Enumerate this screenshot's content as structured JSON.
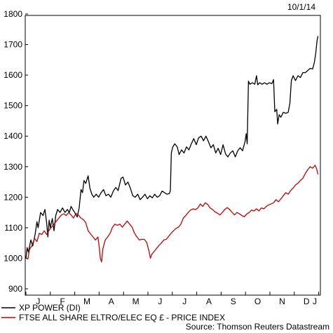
{
  "chart_data": {
    "type": "line",
    "date_label": "10/1/14",
    "source": "Source: Thomson Reuters Datastream",
    "ylim": [
      900,
      1800
    ],
    "yticks": [
      900,
      1000,
      1100,
      1200,
      1300,
      1400,
      1500,
      1600,
      1700,
      1800
    ],
    "month_labels": [
      "J",
      "F",
      "M",
      "A",
      "M",
      "J",
      "J",
      "A",
      "S",
      "O",
      "N",
      "D",
      "J"
    ],
    "x_range": [
      0,
      12.35
    ],
    "grid": false,
    "legend_position": "bottom-left",
    "series": [
      {
        "name": "XP POWER (DI)",
        "color": "#000000",
        "points": [
          [
            0,
            1000
          ],
          [
            0.05,
            1035
          ],
          [
            0.1,
            1020
          ],
          [
            0.2,
            1060
          ],
          [
            0.28,
            1040
          ],
          [
            0.38,
            1080
          ],
          [
            0.45,
            1120
          ],
          [
            0.5,
            1100
          ],
          [
            0.6,
            1150
          ],
          [
            0.7,
            1140
          ],
          [
            0.78,
            1160
          ],
          [
            0.85,
            1115
          ],
          [
            0.9,
            1070
          ],
          [
            0.95,
            1125
          ],
          [
            1.0,
            1100
          ],
          [
            1.08,
            1130
          ],
          [
            1.15,
            1090
          ],
          [
            1.22,
            1140
          ],
          [
            1.3,
            1160
          ],
          [
            1.4,
            1150
          ],
          [
            1.5,
            1165
          ],
          [
            1.6,
            1150
          ],
          [
            1.7,
            1160
          ],
          [
            1.78,
            1150
          ],
          [
            1.85,
            1170
          ],
          [
            1.92,
            1160
          ],
          [
            2.0,
            1150
          ],
          [
            2.1,
            1135
          ],
          [
            2.18,
            1165
          ],
          [
            2.26,
            1225
          ],
          [
            2.32,
            1215
          ],
          [
            2.38,
            1255
          ],
          [
            2.45,
            1245
          ],
          [
            2.55,
            1270
          ],
          [
            2.62,
            1230
          ],
          [
            2.7,
            1210
          ],
          [
            2.78,
            1200
          ],
          [
            2.88,
            1210
          ],
          [
            2.98,
            1200
          ],
          [
            3.08,
            1215
          ],
          [
            3.18,
            1225
          ],
          [
            3.28,
            1205
          ],
          [
            3.38,
            1210
          ],
          [
            3.48,
            1200
          ],
          [
            3.58,
            1220
          ],
          [
            3.68,
            1232
          ],
          [
            3.78,
            1222
          ],
          [
            3.9,
            1262
          ],
          [
            3.98,
            1266
          ],
          [
            4.08,
            1240
          ],
          [
            4.18,
            1250
          ],
          [
            4.28,
            1230
          ],
          [
            4.38,
            1205
          ],
          [
            4.48,
            1200
          ],
          [
            4.58,
            1210
          ],
          [
            4.68,
            1192
          ],
          [
            4.78,
            1200
          ],
          [
            4.88,
            1210
          ],
          [
            4.98,
            1195
          ],
          [
            5.08,
            1205
          ],
          [
            5.18,
            1198
          ],
          [
            5.28,
            1210
          ],
          [
            5.38,
            1200
          ],
          [
            5.48,
            1205
          ],
          [
            5.58,
            1220
          ],
          [
            5.68,
            1215
          ],
          [
            5.78,
            1210
          ],
          [
            5.88,
            1212
          ],
          [
            5.92,
            1222
          ],
          [
            5.96,
            1345
          ],
          [
            6.02,
            1365
          ],
          [
            6.1,
            1375
          ],
          [
            6.2,
            1365
          ],
          [
            6.28,
            1340
          ],
          [
            6.38,
            1355
          ],
          [
            6.48,
            1345
          ],
          [
            6.58,
            1365
          ],
          [
            6.68,
            1355
          ],
          [
            6.78,
            1375
          ],
          [
            6.88,
            1392
          ],
          [
            6.98,
            1372
          ],
          [
            7.08,
            1395
          ],
          [
            7.18,
            1400
          ],
          [
            7.28,
            1385
          ],
          [
            7.38,
            1400
          ],
          [
            7.48,
            1382
          ],
          [
            7.58,
            1362
          ],
          [
            7.68,
            1372
          ],
          [
            7.78,
            1345
          ],
          [
            7.88,
            1360
          ],
          [
            7.98,
            1340
          ],
          [
            8.08,
            1372
          ],
          [
            8.18,
            1342
          ],
          [
            8.28,
            1332
          ],
          [
            8.38,
            1345
          ],
          [
            8.48,
            1352
          ],
          [
            8.58,
            1332
          ],
          [
            8.68,
            1352
          ],
          [
            8.78,
            1362
          ],
          [
            8.88,
            1352
          ],
          [
            8.98,
            1382
          ],
          [
            9.03,
            1408
          ],
          [
            9.07,
            1375
          ],
          [
            9.12,
            1580
          ],
          [
            9.18,
            1570
          ],
          [
            9.28,
            1575
          ],
          [
            9.38,
            1570
          ],
          [
            9.45,
            1598
          ],
          [
            9.5,
            1568
          ],
          [
            9.58,
            1575
          ],
          [
            9.68,
            1570
          ],
          [
            9.78,
            1575
          ],
          [
            9.88,
            1570
          ],
          [
            9.98,
            1575
          ],
          [
            10.08,
            1572
          ],
          [
            10.15,
            1585
          ],
          [
            10.2,
            1480
          ],
          [
            10.28,
            1488
          ],
          [
            10.32,
            1440
          ],
          [
            10.38,
            1470
          ],
          [
            10.45,
            1462
          ],
          [
            10.55,
            1478
          ],
          [
            10.65,
            1475
          ],
          [
            10.75,
            1478
          ],
          [
            10.82,
            1508
          ],
          [
            10.88,
            1582
          ],
          [
            10.95,
            1598
          ],
          [
            11.05,
            1582
          ],
          [
            11.15,
            1598
          ],
          [
            11.25,
            1592
          ],
          [
            11.35,
            1608
          ],
          [
            11.45,
            1608
          ],
          [
            11.55,
            1615
          ],
          [
            11.65,
            1622
          ],
          [
            11.75,
            1620
          ],
          [
            11.82,
            1640
          ],
          [
            11.88,
            1672
          ],
          [
            11.93,
            1712
          ],
          [
            11.97,
            1728
          ]
        ]
      },
      {
        "name": "FTSE ALL SHARE ELTRO/ELEC EQ £ - PRICE INDEX",
        "color": "#cc0000",
        "points": [
          [
            0,
            1000
          ],
          [
            0.08,
            998
          ],
          [
            0.15,
            1030
          ],
          [
            0.25,
            1042
          ],
          [
            0.35,
            1065
          ],
          [
            0.45,
            1055
          ],
          [
            0.55,
            1082
          ],
          [
            0.65,
            1078
          ],
          [
            0.75,
            1090
          ],
          [
            0.85,
            1078
          ],
          [
            0.95,
            1092
          ],
          [
            1.05,
            1102
          ],
          [
            1.15,
            1112
          ],
          [
            1.25,
            1122
          ],
          [
            1.35,
            1132
          ],
          [
            1.45,
            1142
          ],
          [
            1.55,
            1146
          ],
          [
            1.65,
            1140
          ],
          [
            1.75,
            1150
          ],
          [
            1.85,
            1142
          ],
          [
            1.95,
            1132
          ],
          [
            2.05,
            1147
          ],
          [
            2.15,
            1142
          ],
          [
            2.25,
            1132
          ],
          [
            2.35,
            1127
          ],
          [
            2.45,
            1117
          ],
          [
            2.55,
            1090
          ],
          [
            2.65,
            1080
          ],
          [
            2.75,
            1070
          ],
          [
            2.85,
            1060
          ],
          [
            2.95,
            1070
          ],
          [
            3.0,
            1040
          ],
          [
            3.05,
            1000
          ],
          [
            3.1,
            988
          ],
          [
            3.15,
            1030
          ],
          [
            3.25,
            1060
          ],
          [
            3.35,
            1070
          ],
          [
            3.45,
            1082
          ],
          [
            3.55,
            1102
          ],
          [
            3.65,
            1112
          ],
          [
            3.75,
            1108
          ],
          [
            3.85,
            1112
          ],
          [
            3.95,
            1102
          ],
          [
            4.05,
            1112
          ],
          [
            4.15,
            1122
          ],
          [
            4.25,
            1112
          ],
          [
            4.35,
            1102
          ],
          [
            4.45,
            1082
          ],
          [
            4.55,
            1070
          ],
          [
            4.65,
            1060
          ],
          [
            4.75,
            1062
          ],
          [
            4.85,
            1062
          ],
          [
            4.95,
            1052
          ],
          [
            5.05,
            1022
          ],
          [
            5.1,
            1000
          ],
          [
            5.15,
            1012
          ],
          [
            5.25,
            1022
          ],
          [
            5.35,
            1032
          ],
          [
            5.45,
            1042
          ],
          [
            5.55,
            1050
          ],
          [
            5.65,
            1060
          ],
          [
            5.75,
            1062
          ],
          [
            5.85,
            1072
          ],
          [
            5.95,
            1082
          ],
          [
            6.05,
            1090
          ],
          [
            6.15,
            1098
          ],
          [
            6.25,
            1102
          ],
          [
            6.35,
            1112
          ],
          [
            6.45,
            1132
          ],
          [
            6.55,
            1140
          ],
          [
            6.65,
            1150
          ],
          [
            6.75,
            1158
          ],
          [
            6.85,
            1162
          ],
          [
            6.95,
            1160
          ],
          [
            7.05,
            1165
          ],
          [
            7.15,
            1178
          ],
          [
            7.25,
            1170
          ],
          [
            7.35,
            1182
          ],
          [
            7.45,
            1176
          ],
          [
            7.55,
            1165
          ],
          [
            7.65,
            1160
          ],
          [
            7.75,
            1152
          ],
          [
            7.85,
            1148
          ],
          [
            7.95,
            1142
          ],
          [
            8.05,
            1150
          ],
          [
            8.15,
            1160
          ],
          [
            8.25,
            1166
          ],
          [
            8.35,
            1160
          ],
          [
            8.45,
            1150
          ],
          [
            8.55,
            1142
          ],
          [
            8.65,
            1150
          ],
          [
            8.75,
            1146
          ],
          [
            8.85,
            1140
          ],
          [
            8.95,
            1136
          ],
          [
            9.05,
            1145
          ],
          [
            9.15,
            1150
          ],
          [
            9.25,
            1158
          ],
          [
            9.35,
            1155
          ],
          [
            9.45,
            1162
          ],
          [
            9.55,
            1155
          ],
          [
            9.65,
            1165
          ],
          [
            9.75,
            1162
          ],
          [
            9.85,
            1170
          ],
          [
            9.95,
            1175
          ],
          [
            10.05,
            1178
          ],
          [
            10.15,
            1182
          ],
          [
            10.25,
            1192
          ],
          [
            10.35,
            1185
          ],
          [
            10.45,
            1195
          ],
          [
            10.55,
            1205
          ],
          [
            10.65,
            1215
          ],
          [
            10.75,
            1210
          ],
          [
            10.85,
            1222
          ],
          [
            10.95,
            1230
          ],
          [
            11.05,
            1240
          ],
          [
            11.15,
            1246
          ],
          [
            11.25,
            1255
          ],
          [
            11.35,
            1262
          ],
          [
            11.45,
            1278
          ],
          [
            11.55,
            1290
          ],
          [
            11.65,
            1300
          ],
          [
            11.75,
            1295
          ],
          [
            11.85,
            1305
          ],
          [
            11.92,
            1292
          ],
          [
            11.97,
            1275
          ]
        ]
      }
    ]
  }
}
